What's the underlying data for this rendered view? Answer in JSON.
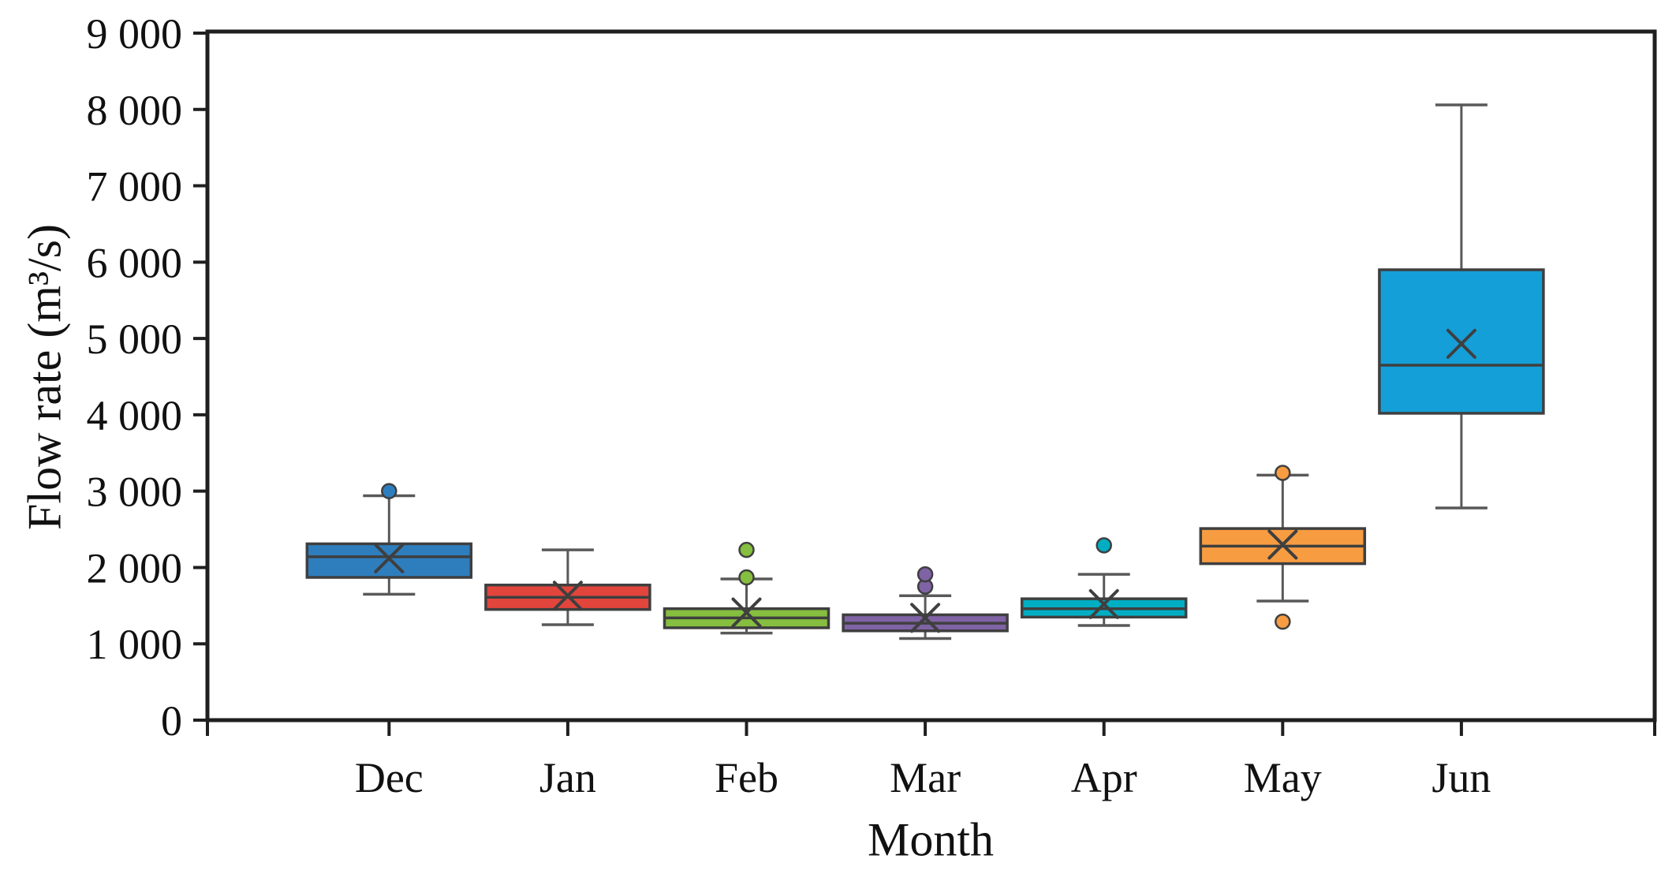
{
  "chart_data": {
    "type": "boxplot",
    "title": "",
    "xlabel": "Month",
    "ylabel": "Flow rate (m³/s)",
    "ylim": [
      0,
      9000
    ],
    "grid": false,
    "legend": "none",
    "mean_marker": "x",
    "frame_color": "#1f1f1f",
    "box_edge_color": "#3f3f3f",
    "whisker_color": "#595959",
    "y_ticks": [
      {
        "value": 0,
        "label": "0"
      },
      {
        "value": 1000,
        "label": "1 000"
      },
      {
        "value": 2000,
        "label": "2 000"
      },
      {
        "value": 3000,
        "label": "3 000"
      },
      {
        "value": 4000,
        "label": "4 000"
      },
      {
        "value": 5000,
        "label": "5 000"
      },
      {
        "value": 6000,
        "label": "6 000"
      },
      {
        "value": 7000,
        "label": "7 000"
      },
      {
        "value": 8000,
        "label": "8 000"
      },
      {
        "value": 9000,
        "label": "9 000"
      }
    ],
    "categories": [
      "Dec",
      "Jan",
      "Feb",
      "Mar",
      "Apr",
      "May",
      "Jun"
    ],
    "series": [
      {
        "name": "Dec",
        "color": "#2E7EBE",
        "whisker_low": 1650,
        "q1": 1870,
        "median": 2140,
        "mean": 2120,
        "q3": 2310,
        "whisker_high": 2940,
        "outliers": [
          3000
        ]
      },
      {
        "name": "Jan",
        "color": "#E2453C",
        "whisker_low": 1250,
        "q1": 1450,
        "median": 1610,
        "mean": 1630,
        "q3": 1770,
        "whisker_high": 2230,
        "outliers": []
      },
      {
        "name": "Feb",
        "color": "#86BE3F",
        "whisker_low": 1140,
        "q1": 1210,
        "median": 1340,
        "mean": 1410,
        "q3": 1460,
        "whisker_high": 1850,
        "outliers": [
          1870,
          2230
        ]
      },
      {
        "name": "Mar",
        "color": "#7F63A5",
        "whisker_low": 1070,
        "q1": 1170,
        "median": 1270,
        "mean": 1340,
        "q3": 1380,
        "whisker_high": 1630,
        "outliers": [
          1750,
          1910
        ]
      },
      {
        "name": "Apr",
        "color": "#00AEC3",
        "whisker_low": 1240,
        "q1": 1350,
        "median": 1460,
        "mean": 1520,
        "q3": 1590,
        "whisker_high": 1910,
        "outliers": [
          2290
        ]
      },
      {
        "name": "May",
        "color": "#F89C42",
        "whisker_low": 1560,
        "q1": 2050,
        "median": 2280,
        "mean": 2300,
        "q3": 2510,
        "whisker_high": 3210,
        "outliers": [
          3240,
          1290
        ]
      },
      {
        "name": "Jun",
        "color": "#149FD8",
        "whisker_low": 2780,
        "q1": 4020,
        "median": 4650,
        "mean": 4930,
        "q3": 5900,
        "whisker_high": 8060,
        "outliers": []
      }
    ]
  }
}
